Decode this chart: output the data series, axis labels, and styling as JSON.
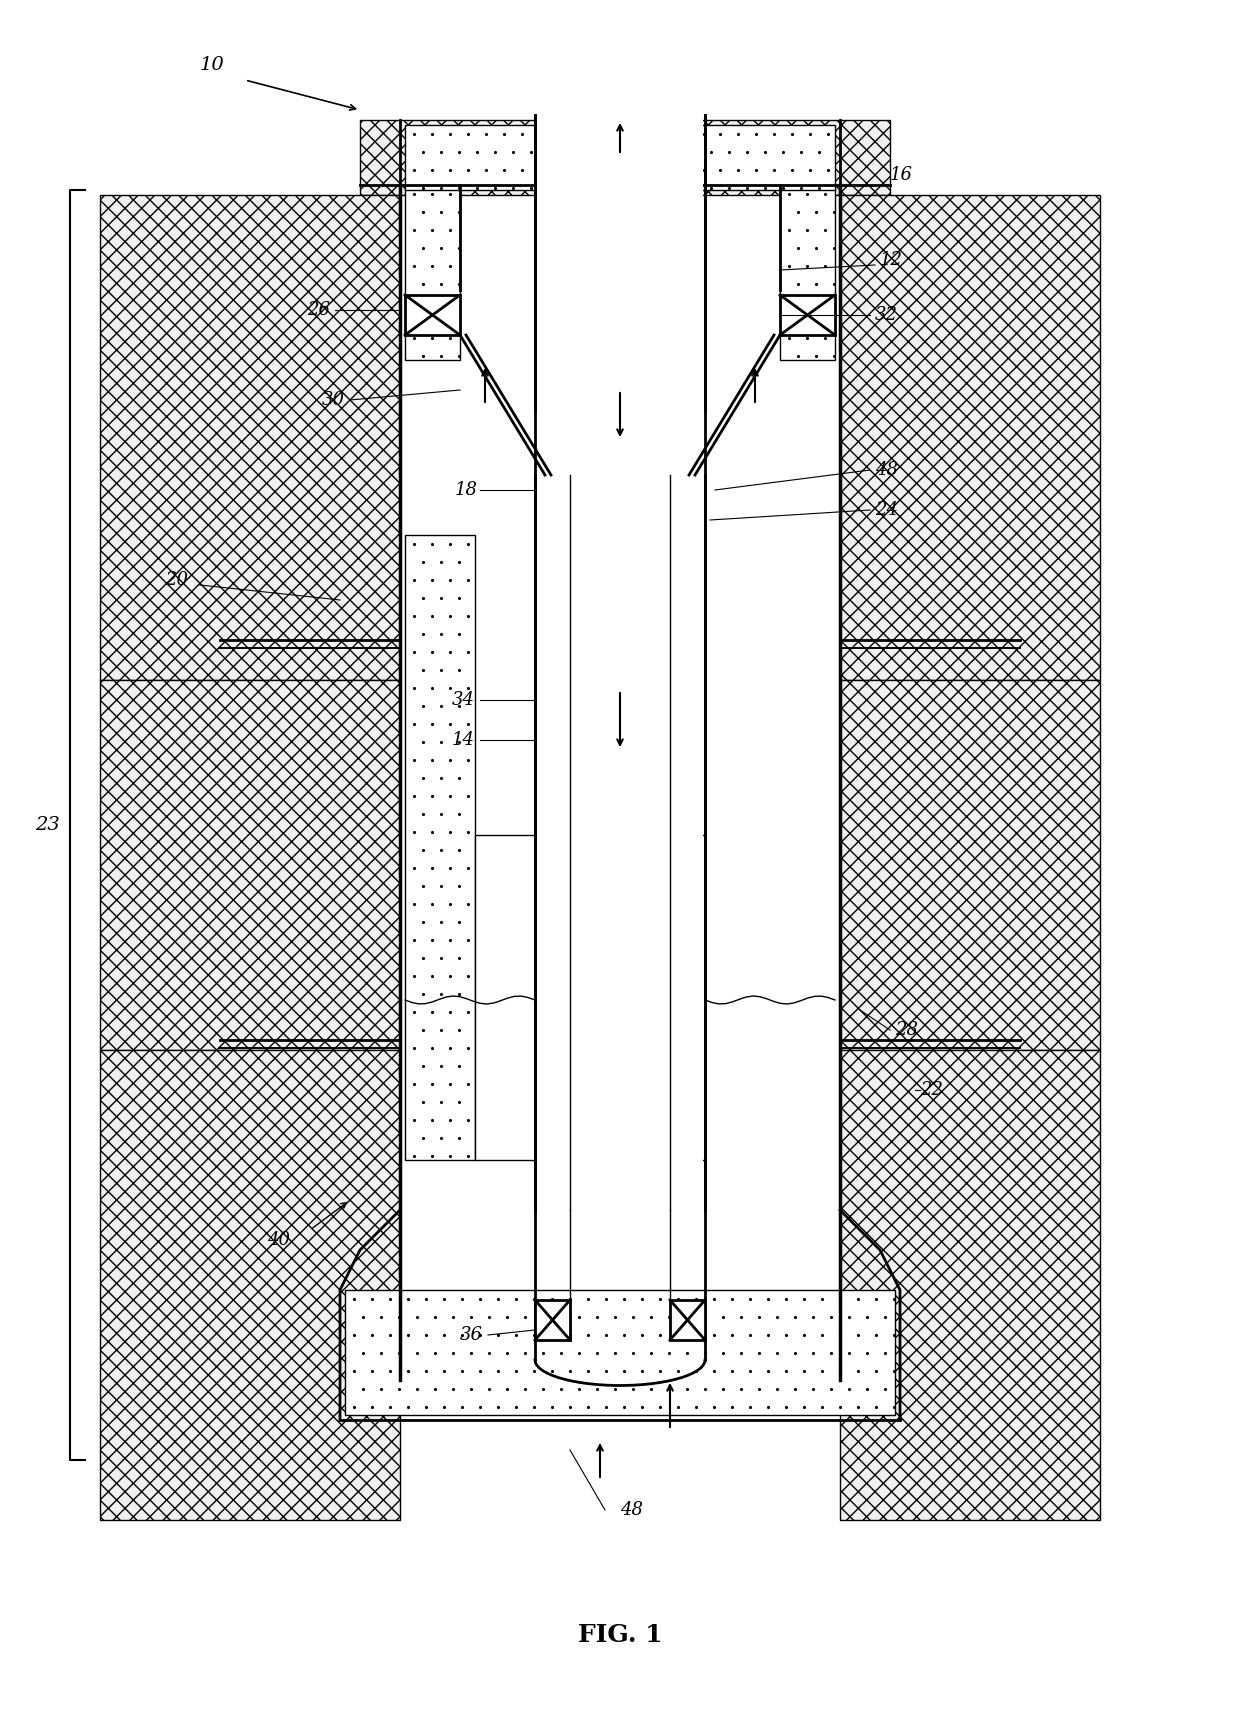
{
  "fig_label": "FIG. 1",
  "label_10": "10",
  "label_12": "12",
  "label_14": "14",
  "label_16": "16",
  "label_18": "18",
  "label_20": "20",
  "label_22": "22",
  "label_23": "23",
  "label_24": "24",
  "label_26": "26",
  "label_28": "28",
  "label_30": "30",
  "label_32": "32",
  "label_34": "34",
  "label_36": "36",
  "label_40": "40",
  "label_48": "48",
  "bg_color": "#ffffff",
  "line_color": "#000000",
  "hatch_color": "#000000",
  "dot_fill": "#e8e8e8",
  "formation_color": "#d0d0d0"
}
